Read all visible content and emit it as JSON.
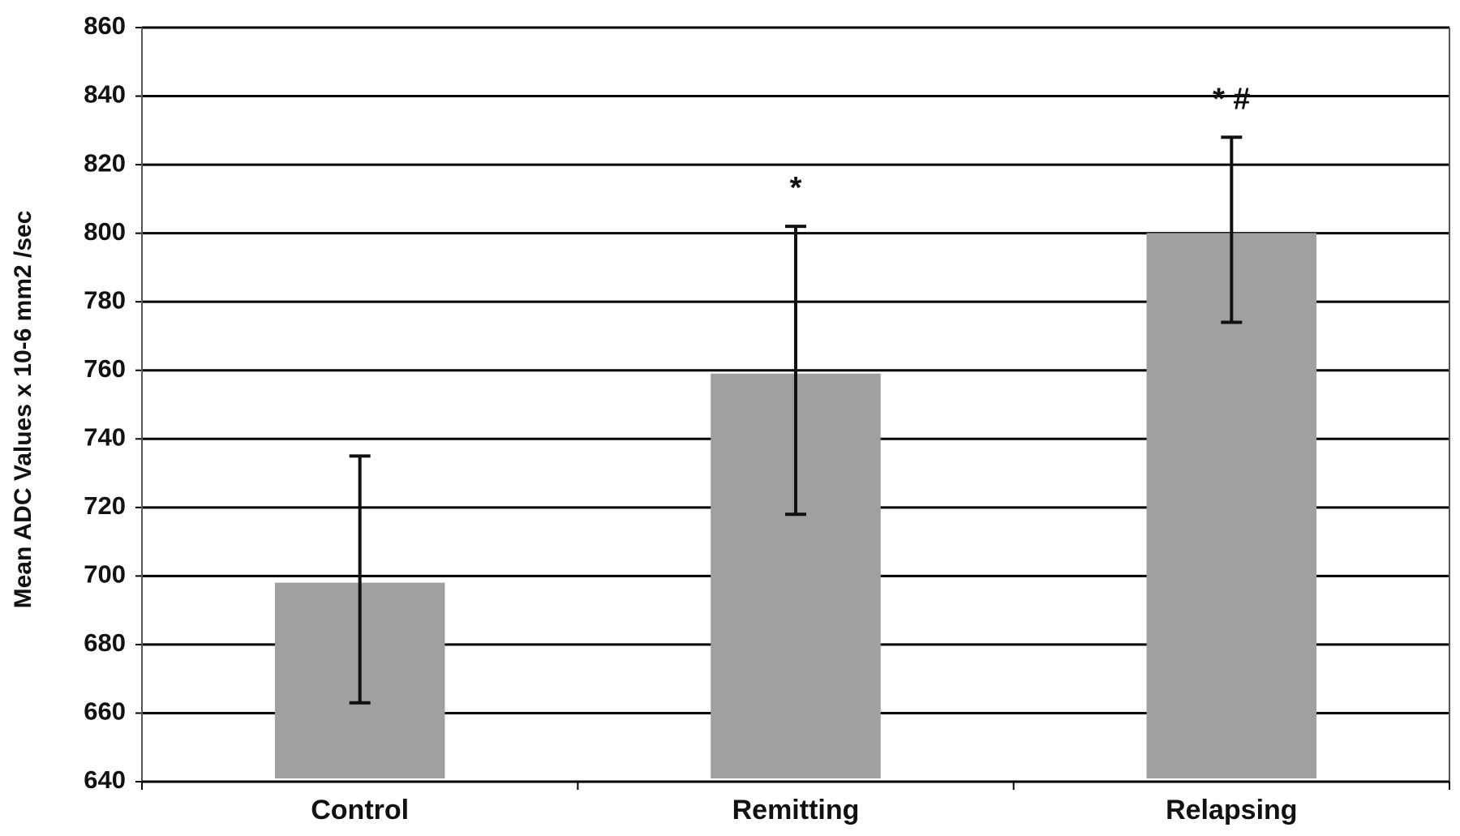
{
  "chart_data": {
    "type": "bar",
    "y_label": "Mean ADC Values x 10-6 mm2 /sec",
    "categories": [
      "Control",
      "Remitting",
      "Relapsing"
    ],
    "values": [
      699,
      760,
      801
    ],
    "errors": [
      36,
      42,
      27
    ],
    "annotations": [
      null,
      "*",
      "* #"
    ],
    "color": "#a0a0a0",
    "ylim": [
      640,
      860
    ],
    "yticks": [
      640,
      660,
      680,
      700,
      720,
      740,
      760,
      780,
      800,
      820,
      840,
      860
    ],
    "grid": true
  }
}
